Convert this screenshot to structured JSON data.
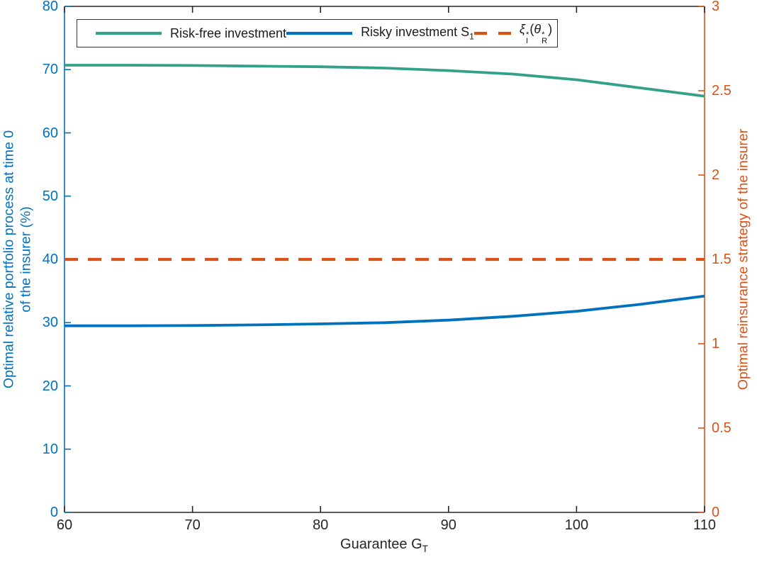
{
  "figure": {
    "background": "#ffffff",
    "axis_color_left": "#0072BD",
    "axis_color_right": "#D95319",
    "axis_color_x": "#262626"
  },
  "chart_data": {
    "type": "line",
    "title": "",
    "xlabel_base": "Guarantee G",
    "xlabel_sub": "T",
    "ylabel_left_line1": "Optimal relative portfolio process at time 0",
    "ylabel_left_line2": "of the insurer (%)",
    "ylabel_right": "Optimal reinsurance strategy of the insurer",
    "xlim": [
      60,
      110
    ],
    "ylim_left": [
      0,
      80
    ],
    "ylim_right": [
      0,
      3
    ],
    "x_ticks": [
      60,
      70,
      80,
      90,
      100,
      110
    ],
    "y_left_ticks": [
      0,
      10,
      20,
      30,
      40,
      50,
      60,
      70,
      80
    ],
    "y_right_ticks": [
      0,
      0.5,
      1,
      1.5,
      2,
      2.5,
      3
    ],
    "y_right_tick_labels": [
      "0",
      "0.5",
      "1",
      "1.5",
      "2",
      "2.5",
      "3"
    ],
    "grid": false,
    "legend_position": "north",
    "x": [
      60,
      65,
      70,
      75,
      80,
      85,
      90,
      95,
      100,
      105,
      110
    ],
    "series": [
      {
        "name": "Risk-free investment",
        "axis": "left",
        "color": "#33A188",
        "dash": false,
        "values": [
          70.7,
          70.7,
          70.65,
          70.55,
          70.45,
          70.25,
          69.85,
          69.3,
          68.4,
          67.1,
          65.8
        ]
      },
      {
        "name": "Risky investment S_1",
        "axis": "left",
        "color": "#0072BD",
        "dash": false,
        "values": [
          29.5,
          29.5,
          29.55,
          29.65,
          29.8,
          30.0,
          30.4,
          31.0,
          31.8,
          32.9,
          34.2
        ]
      },
      {
        "name": "xi_I^*(theta_R^*)",
        "axis": "right",
        "color": "#D95319",
        "dash": true,
        "values": [
          1.5,
          1.5,
          1.5,
          1.5,
          1.5,
          1.5,
          1.5,
          1.5,
          1.5,
          1.5,
          1.5
        ]
      }
    ]
  },
  "legend": {
    "items": [
      {
        "type": "plain",
        "label": "Risk-free investment",
        "color": "#33A188",
        "dash": false
      },
      {
        "type": "subscripted",
        "label_base": "Risky investment S",
        "label_sub": "1",
        "color": "#0072BD",
        "dash": false
      },
      {
        "type": "math",
        "color": "#D95319",
        "dash": true,
        "math": {
          "xi": "ξ",
          "xi_sup": "*",
          "xi_sub": "I",
          "open": "(",
          "theta": "θ",
          "theta_sup": "*",
          "theta_sub": "R",
          "close": ")"
        }
      }
    ]
  }
}
